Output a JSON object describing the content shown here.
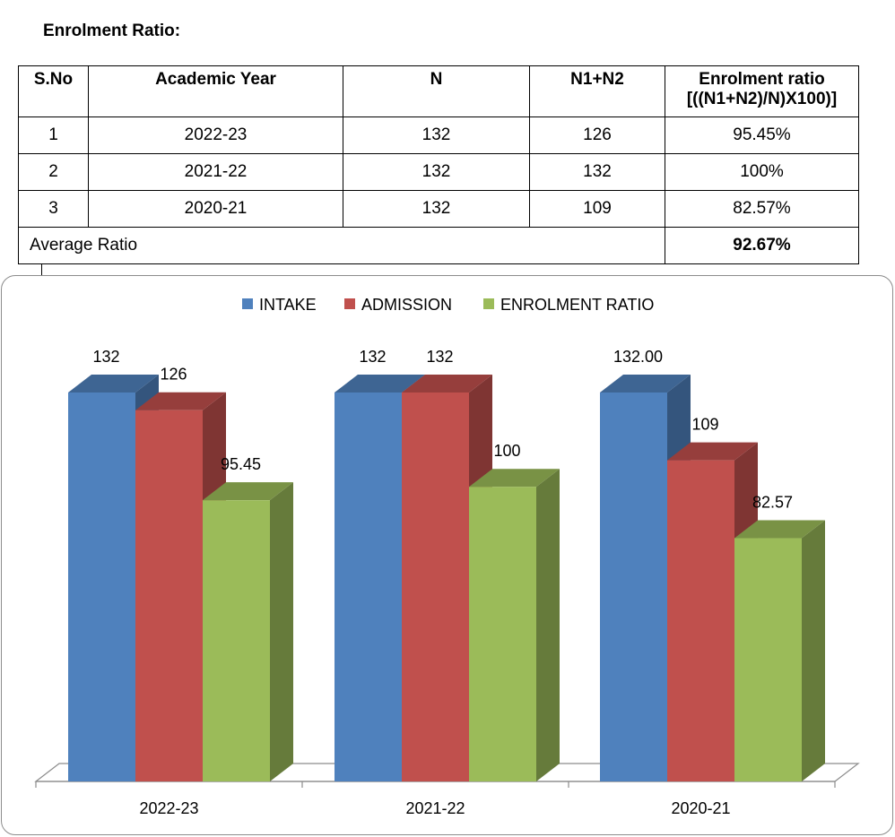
{
  "page_title": "Enrolment Ratio:",
  "table": {
    "headers": [
      "S.No",
      "Academic Year",
      "N",
      "N1+N2",
      "Enrolment ratio",
      "[((N1+N2)/N)X100)]"
    ],
    "rows": [
      [
        "1",
        "2022-23",
        "132",
        "126",
        "95.45%"
      ],
      [
        "2",
        "2021-22",
        "132",
        "132",
        "100%"
      ],
      [
        "3",
        "2020-21",
        "132",
        "109",
        "82.57%"
      ]
    ],
    "average_label": "Average Ratio",
    "average_value": "92.67%"
  },
  "chart_data": {
    "type": "bar",
    "style": "3d-clustered-column",
    "categories": [
      "2022-23",
      "2021-22",
      "2020-21"
    ],
    "series": [
      {
        "name": "INTAKE",
        "values": [
          132,
          132,
          132
        ],
        "labels": [
          "132",
          "132",
          "132.00"
        ],
        "color": "#4F81BD"
      },
      {
        "name": "ADMISSION",
        "values": [
          126,
          132,
          109
        ],
        "labels": [
          "126",
          "132",
          "109"
        ],
        "color": "#C0504D"
      },
      {
        "name": "ENROLMENT RATIO",
        "values": [
          95.45,
          100,
          82.57
        ],
        "labels": [
          "95.45",
          "100",
          "82.57"
        ],
        "color": "#9BBB59"
      }
    ],
    "legend": "top",
    "ylim": [
      0,
      132
    ]
  }
}
